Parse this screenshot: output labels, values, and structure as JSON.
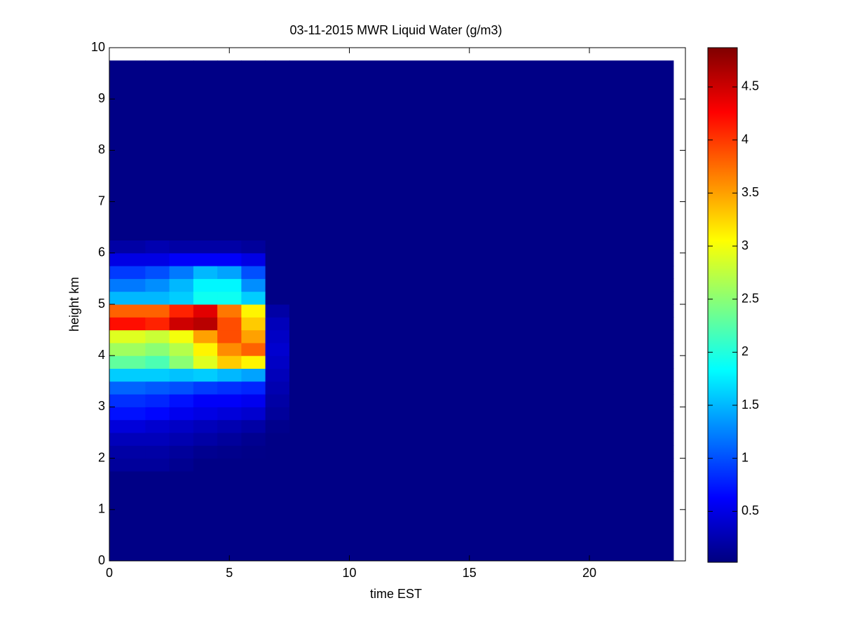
{
  "chart_data": {
    "type": "heatmap",
    "title": "03-11-2015 MWR Liquid Water (g/m3)",
    "x_label": "time EST",
    "y_label": "height km",
    "x_edges": [
      0,
      1.5,
      2.5,
      3.5,
      4.5,
      5.5,
      6.5,
      7.5,
      23.5
    ],
    "y_edges": [
      0,
      1.75,
      2,
      2.25,
      2.5,
      2.75,
      3,
      3.25,
      3.5,
      3.75,
      4,
      4.25,
      4.5,
      4.75,
      5,
      5.25,
      5.5,
      5.75,
      6,
      6.25,
      9.75
    ],
    "z": [
      [
        0.05,
        0.05,
        0.05,
        0.05,
        0.05,
        0.05,
        0.05,
        0.05
      ],
      [
        0.15,
        0.15,
        0.1,
        0.05,
        0.05,
        0.05,
        0.05,
        0.05
      ],
      [
        0.2,
        0.2,
        0.15,
        0.1,
        0.08,
        0.06,
        0.05,
        0.05
      ],
      [
        0.3,
        0.3,
        0.25,
        0.2,
        0.15,
        0.1,
        0.05,
        0.05
      ],
      [
        0.45,
        0.4,
        0.35,
        0.3,
        0.25,
        0.2,
        0.08,
        0.05
      ],
      [
        0.7,
        0.65,
        0.55,
        0.5,
        0.45,
        0.4,
        0.15,
        0.05
      ],
      [
        0.85,
        0.8,
        0.7,
        0.6,
        0.6,
        0.55,
        0.2,
        0.05
      ],
      [
        1.1,
        1.05,
        1.0,
        0.9,
        0.85,
        0.8,
        0.25,
        0.05
      ],
      [
        1.6,
        1.6,
        1.55,
        1.6,
        1.5,
        1.4,
        0.3,
        0.05
      ],
      [
        2.3,
        2.2,
        2.5,
        2.9,
        3.3,
        3.1,
        0.35,
        0.05
      ],
      [
        2.6,
        2.5,
        2.7,
        3.1,
        3.6,
        3.8,
        0.4,
        0.05
      ],
      [
        2.9,
        2.8,
        3.0,
        3.5,
        3.9,
        3.5,
        0.35,
        0.05
      ],
      [
        4.2,
        4.1,
        4.5,
        4.6,
        3.9,
        3.3,
        0.3,
        0.05
      ],
      [
        3.8,
        3.8,
        4.1,
        4.4,
        3.7,
        3.1,
        0.2,
        0.05
      ],
      [
        1.5,
        1.5,
        1.6,
        1.9,
        1.9,
        1.6,
        0.05,
        0.05
      ],
      [
        1.2,
        1.3,
        1.5,
        1.8,
        1.8,
        1.3,
        0.05,
        0.05
      ],
      [
        0.9,
        1.0,
        1.2,
        1.5,
        1.4,
        1.0,
        0.05,
        0.05
      ],
      [
        0.5,
        0.5,
        0.6,
        0.6,
        0.6,
        0.5,
        0.05,
        0.05
      ],
      [
        0.2,
        0.25,
        0.2,
        0.2,
        0.2,
        0.15,
        0.05,
        0.05
      ],
      [
        0.05,
        0.05,
        0.05,
        0.05,
        0.05,
        0.05,
        0.05,
        0.05
      ]
    ],
    "colormap": "jet",
    "xlim": [
      0,
      24
    ],
    "xticks": [
      0,
      5,
      10,
      15,
      20
    ],
    "ylim": [
      0,
      10
    ],
    "yticks": [
      0,
      1,
      2,
      3,
      4,
      5,
      6,
      7,
      8,
      9,
      10
    ],
    "clim": [
      0.02,
      4.87
    ],
    "cticks": [
      0.5,
      1,
      1.5,
      2,
      2.5,
      3,
      3.5,
      4,
      4.5
    ]
  }
}
